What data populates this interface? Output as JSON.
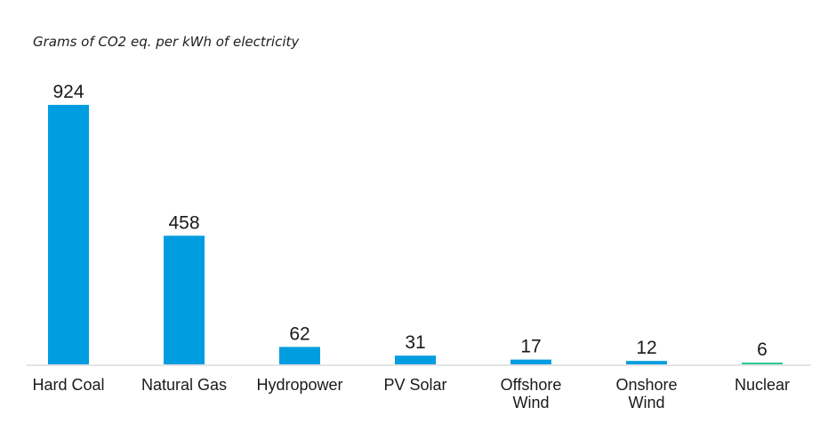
{
  "chart_data": {
    "type": "bar",
    "title": "Grams of CO2 eq. per kWh of electricity",
    "xlabel": "",
    "ylabel": "",
    "ylim": [
      0,
      924
    ],
    "categories": [
      [
        "Hard Coal"
      ],
      [
        "Natural Gas"
      ],
      [
        "Hydropower"
      ],
      [
        "PV Solar"
      ],
      [
        "Offshore",
        "Wind"
      ],
      [
        "Onshore",
        "Wind"
      ],
      [
        "Nuclear"
      ]
    ],
    "values": [
      924,
      458,
      62,
      31,
      17,
      12,
      6
    ],
    "value_labels": [
      "924",
      "458",
      "62",
      "31",
      "17",
      "12",
      "6"
    ],
    "colors": [
      "#009de0",
      "#009de0",
      "#009de0",
      "#009de0",
      "#009de0",
      "#009de0",
      "#2cc79a"
    ],
    "grid": false,
    "legend": "none"
  }
}
